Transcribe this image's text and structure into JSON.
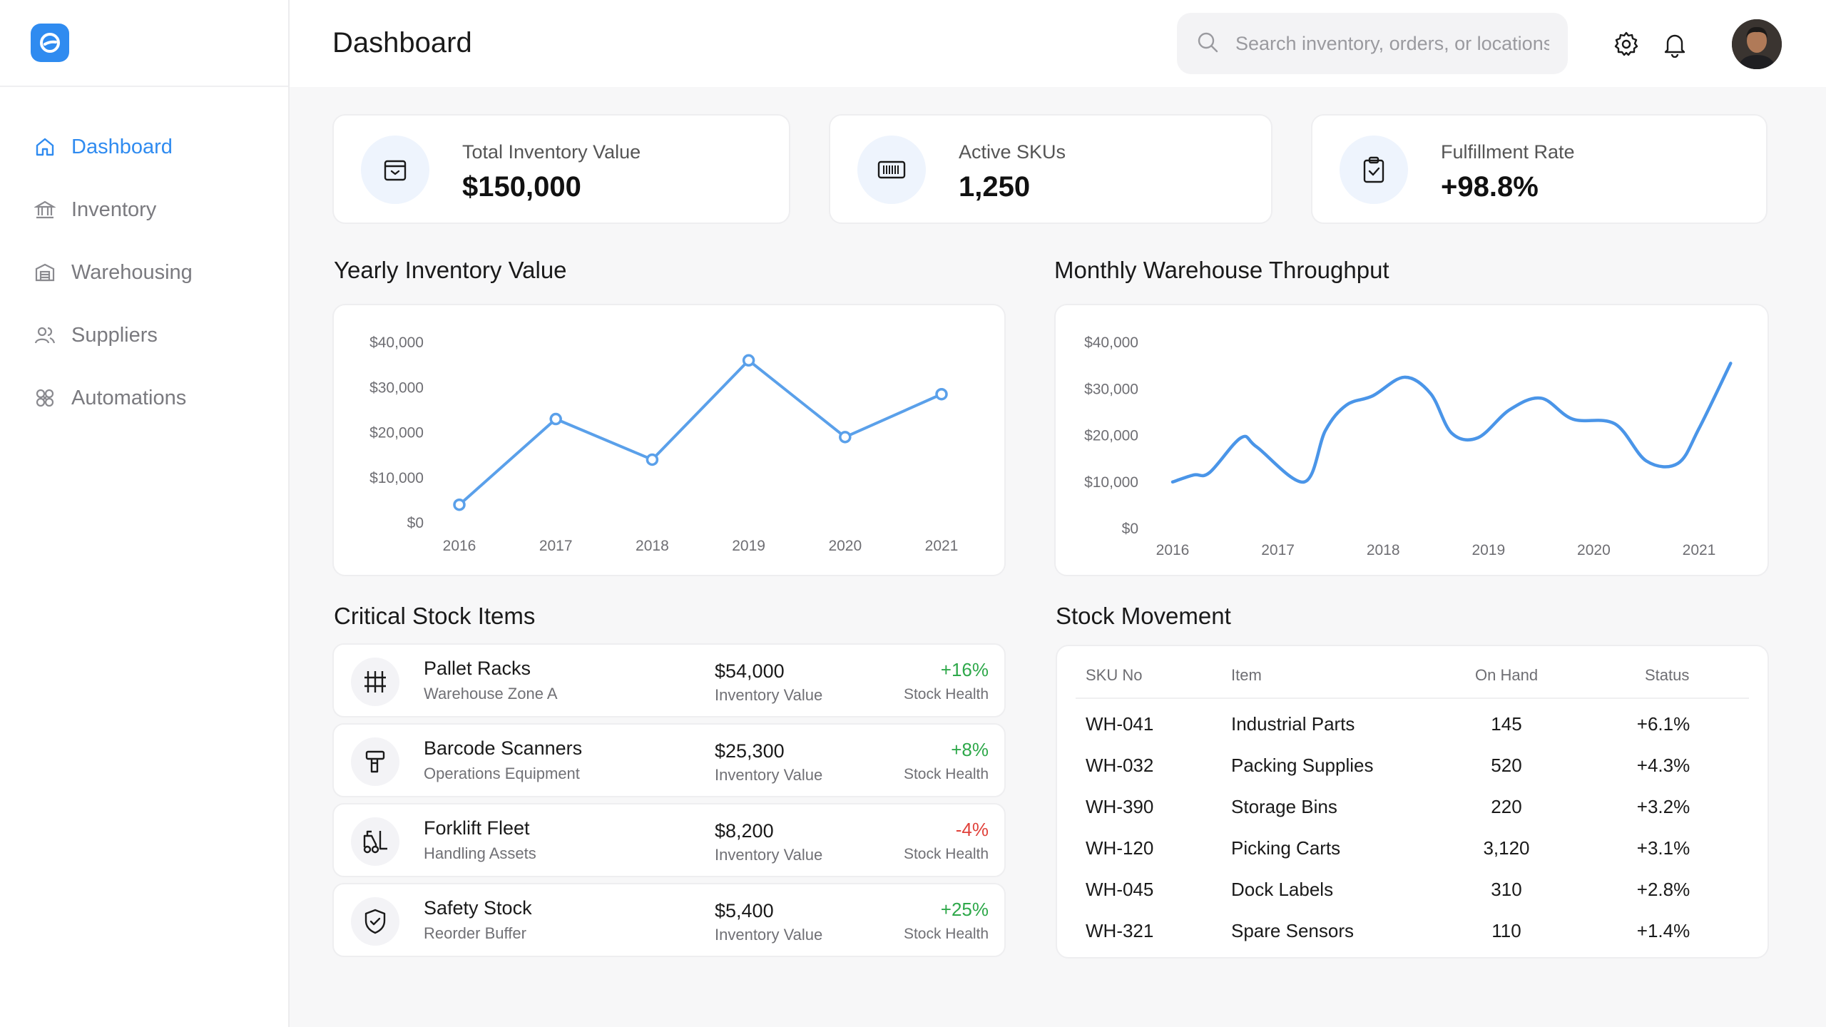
{
  "app": {
    "logo_icon": "brand-logo-icon"
  },
  "sidebar": {
    "items": [
      {
        "label": "Dashboard",
        "icon": "home-icon",
        "active": true
      },
      {
        "label": "Inventory",
        "icon": "bank-icon"
      },
      {
        "label": "Warehousing",
        "icon": "warehouse-icon"
      },
      {
        "label": "Suppliers",
        "icon": "users-icon"
      },
      {
        "label": "Automations",
        "icon": "automation-icon"
      }
    ]
  },
  "header": {
    "title": "Dashboard",
    "search_placeholder": "Search inventory, orders, or locations"
  },
  "kpis": [
    {
      "label": "Total Inventory Value",
      "value": "$150,000",
      "icon": "box-icon"
    },
    {
      "label": "Active SKUs",
      "value": "1,250",
      "icon": "barcode-icon"
    },
    {
      "label": "Fulfillment Rate",
      "value": "+98.8%",
      "icon": "clipboard-check-icon"
    }
  ],
  "sections": {
    "yearly": "Yearly Inventory Value",
    "monthly": "Monthly Warehouse Throughput",
    "critical": "Critical Stock Items",
    "movement": "Stock Movement"
  },
  "chart_data": [
    {
      "type": "line",
      "title": "Yearly Inventory Value",
      "x": [
        "2016",
        "2017",
        "2018",
        "2019",
        "2020",
        "2021"
      ],
      "values": [
        4000,
        23000,
        14000,
        36000,
        19000,
        28500
      ],
      "yticks": [
        "$0",
        "$10,000",
        "$20,000",
        "$30,000",
        "$40,000"
      ],
      "ylim": [
        0,
        40000
      ],
      "markers": true,
      "color": "#5aa0ea",
      "grid": false
    },
    {
      "type": "line",
      "title": "Monthly Warehouse Throughput",
      "x": [
        "2016",
        "2017",
        "2018",
        "2019",
        "2020",
        "2021"
      ],
      "points": [
        [
          2016.0,
          10000
        ],
        [
          2016.2,
          11500
        ],
        [
          2016.35,
          12000
        ],
        [
          2016.65,
          19500
        ],
        [
          2016.8,
          17500
        ],
        [
          2017.25,
          10000
        ],
        [
          2017.45,
          21000
        ],
        [
          2017.65,
          26500
        ],
        [
          2017.9,
          28500
        ],
        [
          2018.2,
          32500
        ],
        [
          2018.45,
          29000
        ],
        [
          2018.65,
          20500
        ],
        [
          2018.9,
          19500
        ],
        [
          2019.2,
          25500
        ],
        [
          2019.5,
          28000
        ],
        [
          2019.8,
          23500
        ],
        [
          2020.2,
          22500
        ],
        [
          2020.5,
          14500
        ],
        [
          2020.8,
          14000
        ],
        [
          2021.0,
          21500
        ],
        [
          2021.3,
          35500
        ]
      ],
      "yticks": [
        "$0",
        "$10,000",
        "$20,000",
        "$30,000",
        "$40,000"
      ],
      "ylim": [
        0,
        40000
      ],
      "markers": false,
      "smooth": true,
      "color": "#4a95e8",
      "grid": false
    }
  ],
  "critical_items": [
    {
      "name": "Pallet Racks",
      "sub": "Warehouse Zone A",
      "value": "$54,000",
      "value_label": "Inventory Value",
      "change": "+16%",
      "health_label": "Stock Health",
      "trend": "pos",
      "icon": "grid-rack-icon"
    },
    {
      "name": "Barcode Scanners",
      "sub": "Operations Equipment",
      "value": "$25,300",
      "value_label": "Inventory Value",
      "change": "+8%",
      "health_label": "Stock Health",
      "trend": "pos",
      "icon": "scanner-icon"
    },
    {
      "name": "Forklift Fleet",
      "sub": "Handling Assets",
      "value": "$8,200",
      "value_label": "Inventory Value",
      "change": "-4%",
      "health_label": "Stock Health",
      "trend": "neg",
      "icon": "forklift-icon"
    },
    {
      "name": "Safety Stock",
      "sub": "Reorder Buffer",
      "value": "$5,400",
      "value_label": "Inventory Value",
      "change": "+25%",
      "health_label": "Stock Health",
      "trend": "pos",
      "icon": "shield-check-icon"
    }
  ],
  "stock_movement": {
    "columns": [
      "SKU No",
      "Item",
      "On Hand",
      "Status"
    ],
    "rows": [
      {
        "sku": "WH-041",
        "item": "Industrial Parts",
        "on_hand": "145",
        "status": "+6.1%"
      },
      {
        "sku": "WH-032",
        "item": "Packing Supplies",
        "on_hand": "520",
        "status": "+4.3%"
      },
      {
        "sku": "WH-390",
        "item": "Storage Bins",
        "on_hand": "220",
        "status": "+3.2%"
      },
      {
        "sku": "WH-120",
        "item": "Picking Carts",
        "on_hand": "3,120",
        "status": "+3.1%"
      },
      {
        "sku": "WH-045",
        "item": "Dock Labels",
        "on_hand": "310",
        "status": "+2.8%"
      },
      {
        "sku": "WH-321",
        "item": "Spare Sensors",
        "on_hand": "110",
        "status": "+1.4%"
      }
    ]
  },
  "colors": {
    "accent": "#2f8bf0",
    "positive": "#2ea84a",
    "negative": "#e0423b"
  }
}
